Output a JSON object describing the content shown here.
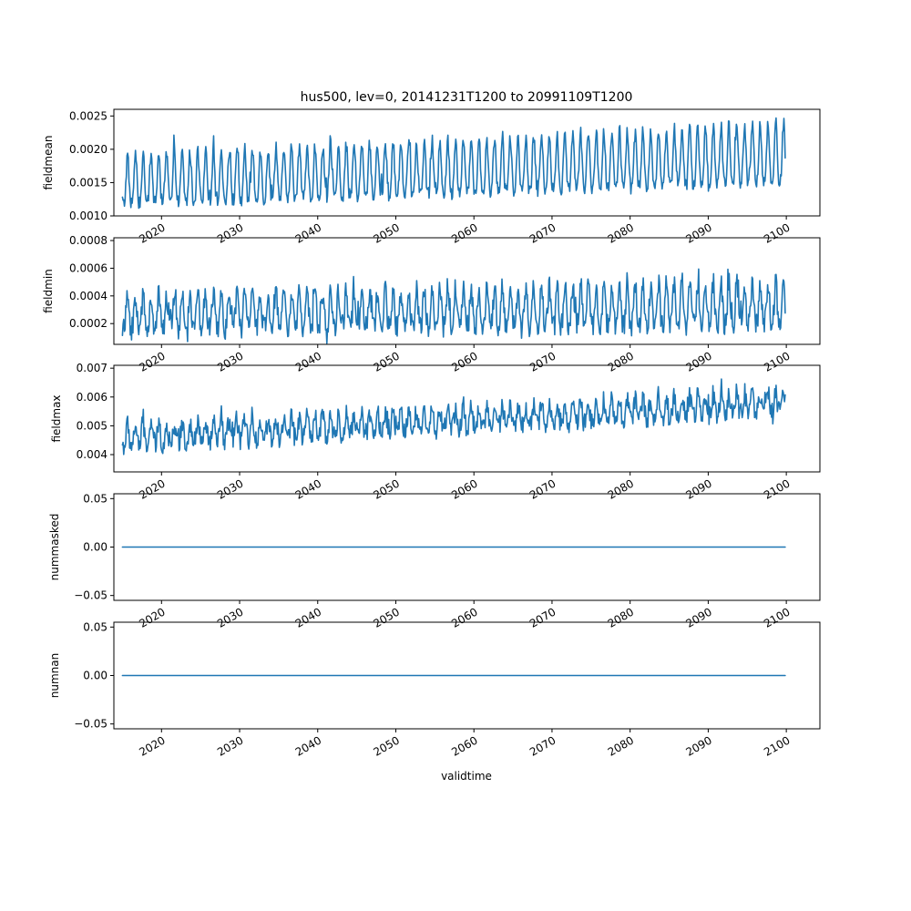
{
  "chart_data": {
    "type": "line",
    "title": "hus500, lev=0, 20141231T1200 to 20991109T1200",
    "xlabel": "validtime",
    "x_start": "2014-12-31",
    "x_end": "2099-11-09",
    "xlim": [
      2013.9,
      2104.3
    ],
    "xticks": [
      2020,
      2030,
      2040,
      2050,
      2060,
      2070,
      2080,
      2090,
      2100
    ],
    "line_color": "#1f77b4",
    "grid": false,
    "legend": "none",
    "panels": [
      {
        "ylabel": "fieldmean",
        "ylim": [
          0.001,
          0.0026
        ],
        "yticks": [
          "0.0010",
          "0.0015",
          "0.0020",
          "0.0025"
        ],
        "ytick_values": [
          0.001,
          0.0015,
          0.002,
          0.0025
        ],
        "pattern": {
          "trough_start": 0.00118,
          "trough_end": 0.0015,
          "peak_start": 0.0019,
          "peak_end": 0.0024,
          "noise": 0.0001,
          "peak_extra": 0.00018
        }
      },
      {
        "ylabel": "fieldmin",
        "ylim": [
          5e-05,
          0.00082
        ],
        "yticks": [
          "0.0002",
          "0.0004",
          "0.0006",
          "0.0008"
        ],
        "ytick_values": [
          0.0002,
          0.0004,
          0.0006,
          0.0008
        ],
        "pattern": {
          "trough_start": 0.00016,
          "trough_end": 0.0002,
          "peak_start": 0.0004,
          "peak_end": 0.0005,
          "noise": 8e-05,
          "peak_extra": 0.00012
        }
      },
      {
        "ylabel": "fieldmax",
        "ylim": [
          0.0034,
          0.0071
        ],
        "yticks": [
          "0.004",
          "0.005",
          "0.006",
          "0.007"
        ],
        "ytick_values": [
          0.004,
          0.005,
          0.006,
          0.007
        ],
        "pattern": {
          "trough_start": 0.0043,
          "trough_end": 0.0055,
          "peak_start": 0.005,
          "peak_end": 0.0062,
          "noise": 0.00035,
          "peak_extra": 0.0003
        }
      },
      {
        "ylabel": "nummasked",
        "ylim": [
          -0.055,
          0.055
        ],
        "yticks": [
          "−0.05",
          "0.00",
          "0.05"
        ],
        "ytick_values": [
          -0.05,
          0.0,
          0.05
        ],
        "constant": 0.0
      },
      {
        "ylabel": "numnan",
        "ylim": [
          -0.055,
          0.055
        ],
        "yticks": [
          "−0.05",
          "0.00",
          "0.05"
        ],
        "ytick_values": [
          -0.05,
          0.0,
          0.05
        ],
        "constant": 0.0
      }
    ]
  }
}
